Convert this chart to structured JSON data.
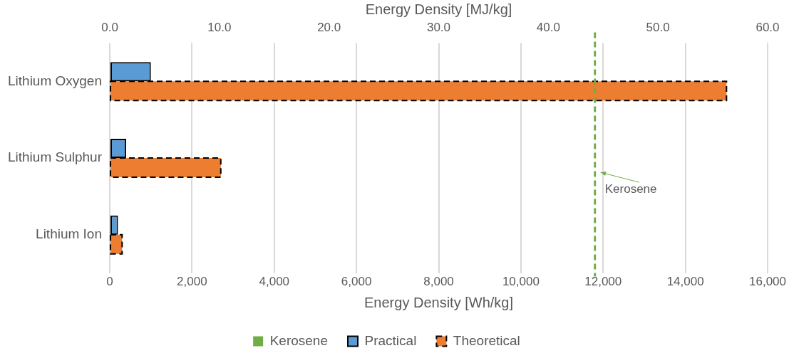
{
  "chart_data": {
    "type": "bar",
    "orientation": "horizontal",
    "categories": [
      "Lithium Oxygen",
      "Lithium Sulphur",
      "Lithium Ion"
    ],
    "series": [
      {
        "name": "Practical",
        "color": "#5b9bd5",
        "line_style": "solid",
        "values": [
          1000,
          400,
          200
        ]
      },
      {
        "name": "Theoretical",
        "color": "#ed7d31",
        "line_style": "dashed",
        "values": [
          15000,
          2700,
          300
        ]
      }
    ],
    "xlabel": "Energy Density [Wh/kg]",
    "x2label": "Energy Density [MJ/kg]",
    "xlim": [
      0,
      16000
    ],
    "xticks": [
      0,
      {
        "value": 2000,
        "label": "2,000"
      },
      {
        "value": 4000,
        "label": "4,000"
      },
      {
        "value": 6000,
        "label": "6,000"
      },
      {
        "value": 8000,
        "label": "8,000"
      },
      {
        "value": 10000,
        "label": "10,000"
      },
      {
        "value": 12000,
        "label": "12,000"
      },
      {
        "value": 14000,
        "label": "14,000"
      },
      {
        "value": 16000,
        "label": "16,000"
      }
    ],
    "x2lim": [
      0,
      60
    ],
    "x2ticks": [
      {
        "value": 0,
        "label": "0.0"
      },
      {
        "value": 10,
        "label": "10.0"
      },
      {
        "value": 20,
        "label": "20.0"
      },
      {
        "value": 30,
        "label": "30.0"
      },
      {
        "value": 40,
        "label": "40.0"
      },
      {
        "value": 50,
        "label": "50.0"
      },
      {
        "value": 60,
        "label": "60.0"
      }
    ],
    "ref_lines": [
      {
        "axis": "x",
        "value": 11800,
        "label": "Kerosene",
        "color": "#70ad47",
        "line_style": "dashed"
      }
    ],
    "annotations": [
      {
        "text": "Kerosene",
        "x": 11800
      }
    ],
    "grid": "x",
    "legend": "bottom"
  }
}
